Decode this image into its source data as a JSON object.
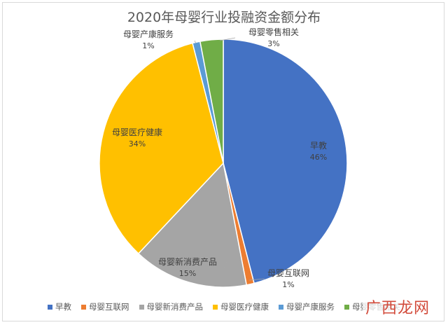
{
  "chart_data": {
    "type": "pie",
    "title": "2020年母婴行业投融资金额分布",
    "slices": [
      {
        "name": "早教",
        "value": 46,
        "label": "46%",
        "color": "#4472c4"
      },
      {
        "name": "母婴互联网",
        "value": 1,
        "label": "1%",
        "color": "#ed7d31"
      },
      {
        "name": "母婴新消费产品",
        "value": 15,
        "label": "15%",
        "color": "#a5a5a5"
      },
      {
        "name": "母婴医疗健康",
        "value": 34,
        "label": "34%",
        "color": "#ffc000"
      },
      {
        "name": "母婴产康服务",
        "value": 1,
        "label": "1%",
        "color": "#5b9bd5"
      },
      {
        "name": "母婴零售相关",
        "value": 3,
        "label": "3%",
        "color": "#70ad47"
      }
    ],
    "legend_position": "bottom"
  },
  "watermark": "广西龙网"
}
